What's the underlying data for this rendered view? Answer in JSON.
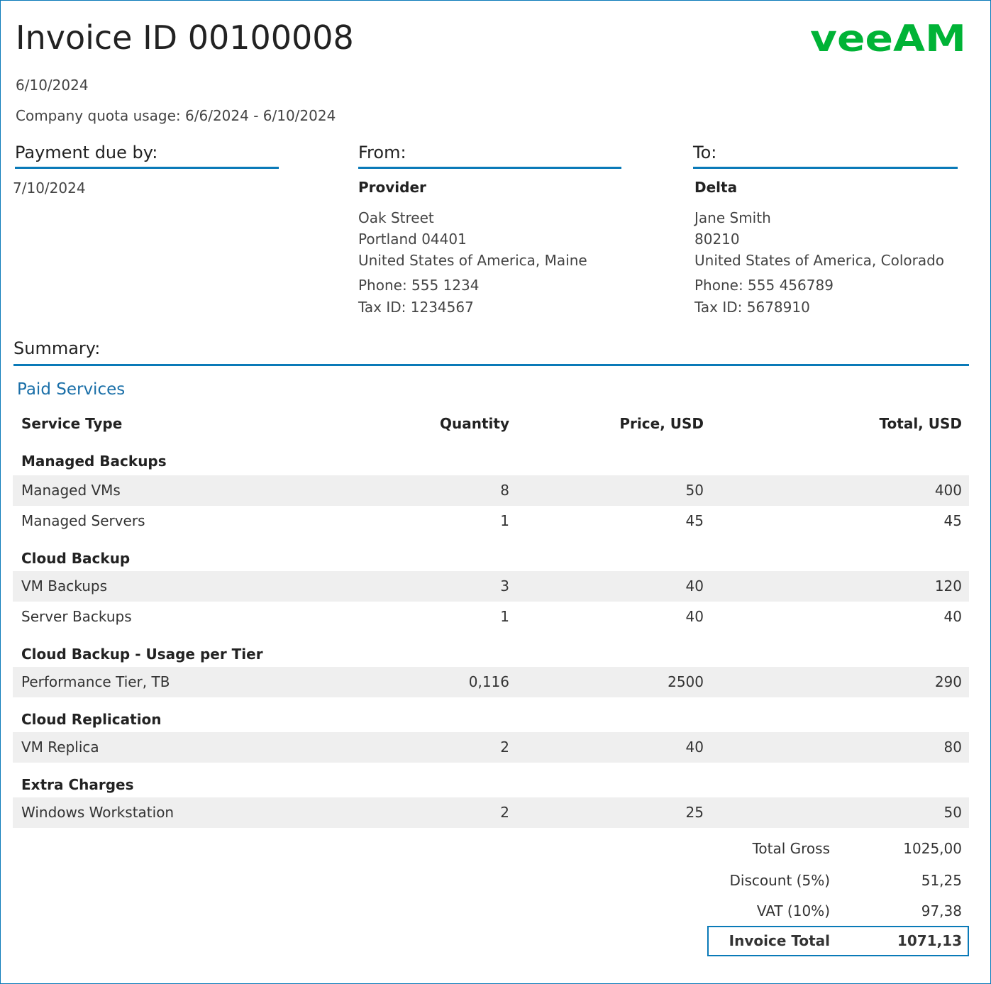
{
  "header": {
    "title": "Invoice ID 00100008",
    "date": "6/10/2024",
    "quota": "Company quota usage: 6/6/2024 - 6/10/2024",
    "logo": "veeam",
    "logo_color": "#00b336"
  },
  "payment": {
    "heading": "Payment due by:",
    "date": "7/10/2024"
  },
  "from": {
    "heading": "From:",
    "name": "Provider",
    "street": "Oak Street",
    "city": "Portland 04401",
    "country": "United States of America, Maine",
    "phone": "Phone: 555 1234",
    "tax": "Tax ID: 1234567"
  },
  "to": {
    "heading": "To:",
    "name": "Delta",
    "contact": "Jane Smith",
    "zip": "80210",
    "country": "United States of America, Colorado",
    "phone": "Phone: 555 456789",
    "tax": "Tax ID: 5678910"
  },
  "summary": {
    "heading": "Summary:",
    "section": "Paid Services",
    "columns": [
      "Service Type",
      "Quantity",
      "Price, USD",
      "Total, USD"
    ],
    "groups": [
      {
        "name": "Managed Backups",
        "rows": [
          [
            "Managed VMs",
            "8",
            "50",
            "400"
          ],
          [
            "Managed Servers",
            "1",
            "45",
            "45"
          ]
        ]
      },
      {
        "name": "Cloud Backup",
        "rows": [
          [
            "VM Backups",
            "3",
            "40",
            "120"
          ],
          [
            "Server Backups",
            "1",
            "40",
            "40"
          ]
        ]
      },
      {
        "name": "Cloud Backup - Usage per Tier",
        "rows": [
          [
            "Performance Tier, TB",
            "0,116",
            "2500",
            "290"
          ]
        ]
      },
      {
        "name": "Cloud Replication",
        "rows": [
          [
            "VM Replica",
            "2",
            "40",
            "80"
          ]
        ]
      },
      {
        "name": "Extra Charges",
        "rows": [
          [
            "Windows Workstation",
            "2",
            "25",
            "50"
          ]
        ]
      }
    ]
  },
  "totals": {
    "gross_label": "Total Gross",
    "gross": "1025,00",
    "discount_label": "Discount (5%)",
    "discount": "51,25",
    "vat_label": "VAT (10%)",
    "vat": "97,38",
    "total_label": "Invoice Total",
    "total": "1071,13"
  },
  "accent": "#0a7ab8"
}
